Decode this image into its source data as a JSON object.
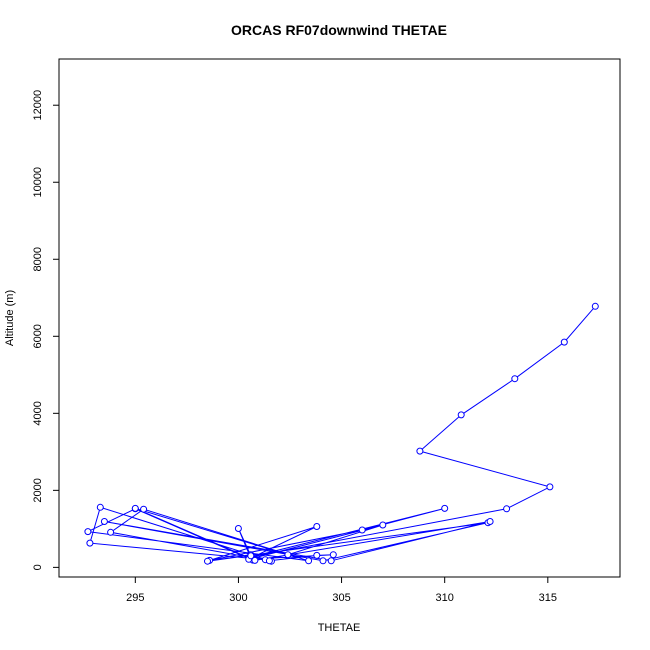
{
  "chart_data": {
    "type": "line",
    "title": "ORCAS RF07downwind THETAE",
    "xlabel": "THETAE",
    "ylabel": "Altitude (m)",
    "xlim": [
      291.3,
      318.5
    ],
    "ylim": [
      -250,
      13200
    ],
    "x_ticks": [
      295,
      300,
      305,
      310,
      315
    ],
    "y_ticks": [
      0,
      2000,
      4000,
      6000,
      8000,
      10000,
      12000
    ],
    "grid": false,
    "legend": "none",
    "series_color": "#0000ff",
    "markers": "open-circle",
    "series": [
      {
        "points": [
          [
            317.3,
            6780
          ],
          [
            315.8,
            5850
          ],
          [
            313.4,
            4900
          ],
          [
            310.8,
            3960
          ],
          [
            308.8,
            3020
          ],
          [
            315.1,
            2090
          ],
          [
            313.0,
            1520
          ],
          [
            300.6,
            270
          ],
          [
            310.0,
            1530
          ],
          [
            306.0,
            970
          ],
          [
            298.6,
            180
          ],
          [
            303.8,
            1060
          ],
          [
            300.6,
            240
          ],
          [
            300.0,
            1010
          ],
          [
            300.7,
            190
          ],
          [
            295.0,
            1520
          ],
          [
            292.7,
            930
          ],
          [
            303.4,
            170
          ],
          [
            295.4,
            1510
          ],
          [
            293.8,
            910
          ],
          [
            301.6,
            160
          ],
          [
            293.3,
            1560
          ],
          [
            292.8,
            630
          ],
          [
            301.3,
            200
          ],
          [
            300.6,
            330
          ],
          [
            298.5,
            160
          ],
          [
            312.1,
            1160
          ],
          [
            304.1,
            170
          ],
          [
            293.5,
            1190
          ],
          [
            304.5,
            170
          ],
          [
            312.2,
            1190
          ],
          [
            300.8,
            180
          ],
          [
            295.0,
            1530
          ],
          [
            302.4,
            330
          ],
          [
            307.0,
            1100
          ],
          [
            300.5,
            210
          ],
          [
            304.6,
            330
          ],
          [
            303.8,
            310
          ],
          [
            301.5,
            170
          ],
          [
            300.6,
            300
          ]
        ]
      }
    ]
  }
}
